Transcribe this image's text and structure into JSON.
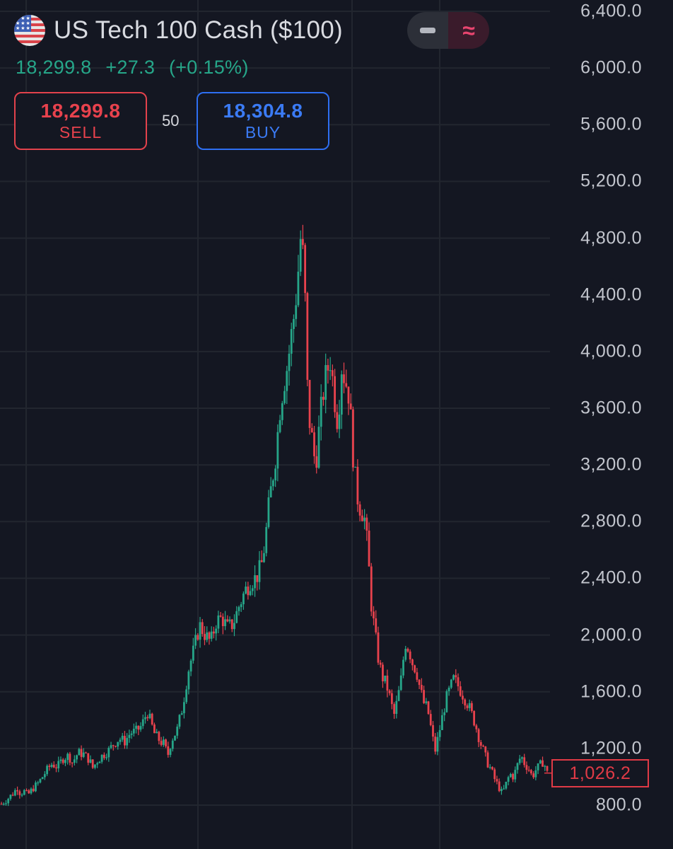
{
  "instrument": {
    "title": "US Tech 100 Cash ($100)",
    "flag_icon": "us-flag-icon",
    "price": "18,299.8",
    "change": "+27.3",
    "change_pct": "(+0.15%)"
  },
  "mode_toggle": {
    "left_icon": "minus-icon",
    "right_icon": "approx-icon",
    "right_symbol": "≈"
  },
  "trade": {
    "sell_price": "18,299.8",
    "sell_label": "SELL",
    "spread": "50",
    "buy_price": "18,304.8",
    "buy_label": "BUY"
  },
  "colors": {
    "up": "#26a689",
    "down": "#e8424d",
    "sell": "#e2424c",
    "buy": "#2e6ff2",
    "background": "#141722"
  },
  "chart_data": {
    "type": "candlestick",
    "ylim": [
      800,
      6400
    ],
    "y_ticks": [
      "6,400.0",
      "6,000.0",
      "5,600.0",
      "5,200.0",
      "4,800.0",
      "4,400.0",
      "4,000.0",
      "3,600.0",
      "3,200.0",
      "2,800.0",
      "2,400.0",
      "2,000.0",
      "1,600.0",
      "1,200.0",
      "800.0"
    ],
    "last_price_label": "1,026.2",
    "grid": true,
    "series": [
      {
        "close_path": [
          [
            0,
            810
          ],
          [
            3,
            840
          ],
          [
            6,
            880
          ],
          [
            9,
            930
          ],
          [
            10,
            880
          ],
          [
            12,
            900
          ],
          [
            14,
            870
          ],
          [
            17,
            920
          ],
          [
            20,
            960
          ],
          [
            22,
            1000
          ],
          [
            25,
            1060
          ],
          [
            27,
            1090
          ],
          [
            30,
            1070
          ],
          [
            33,
            1130
          ],
          [
            36,
            1150
          ],
          [
            38,
            1100
          ],
          [
            41,
            1170
          ],
          [
            44,
            1160
          ],
          [
            47,
            1120
          ],
          [
            49,
            1060
          ],
          [
            51,
            1110
          ],
          [
            54,
            1150
          ],
          [
            57,
            1180
          ],
          [
            60,
            1230
          ],
          [
            63,
            1270
          ],
          [
            66,
            1250
          ],
          [
            69,
            1310
          ],
          [
            72,
            1320
          ],
          [
            75,
            1360
          ],
          [
            78,
            1460
          ],
          [
            80,
            1380
          ],
          [
            82,
            1300
          ],
          [
            85,
            1250
          ],
          [
            87,
            1230
          ],
          [
            89,
            1150
          ],
          [
            91,
            1260
          ],
          [
            94,
            1330
          ],
          [
            97,
            1500
          ],
          [
            100,
            1750
          ],
          [
            103,
            1900
          ],
          [
            106,
            2070
          ],
          [
            109,
            2000
          ],
          [
            112,
            1950
          ],
          [
            115,
            2100
          ],
          [
            118,
            2120
          ],
          [
            121,
            2050
          ],
          [
            124,
            2080
          ],
          [
            127,
            2200
          ],
          [
            130,
            2300
          ],
          [
            133,
            2380
          ],
          [
            136,
            2400
          ],
          [
            139,
            2480
          ],
          [
            141,
            2650
          ],
          [
            143,
            2900
          ],
          [
            145,
            3100
          ],
          [
            147,
            3300
          ],
          [
            149,
            3600
          ],
          [
            151,
            3780
          ],
          [
            153,
            3900
          ],
          [
            155,
            4100
          ],
          [
            157,
            4300
          ],
          [
            159,
            4600
          ],
          [
            160,
            4800
          ],
          [
            162,
            4600
          ],
          [
            164,
            3600
          ],
          [
            166,
            3400
          ],
          [
            168,
            3200
          ],
          [
            170,
            3450
          ],
          [
            172,
            3700
          ],
          [
            174,
            3850
          ],
          [
            176,
            3950
          ],
          [
            178,
            3700
          ],
          [
            180,
            3500
          ],
          [
            182,
            3900
          ],
          [
            184,
            3800
          ],
          [
            186,
            3700
          ],
          [
            188,
            3300
          ],
          [
            190,
            3000
          ],
          [
            192,
            2900
          ],
          [
            194,
            2850
          ],
          [
            196,
            2600
          ],
          [
            198,
            2200
          ],
          [
            200,
            2000
          ],
          [
            202,
            1800
          ],
          [
            204,
            1700
          ],
          [
            206,
            1650
          ],
          [
            208,
            1550
          ],
          [
            210,
            1430
          ],
          [
            212,
            1550
          ],
          [
            214,
            1700
          ],
          [
            216,
            1950
          ],
          [
            218,
            1900
          ],
          [
            220,
            1800
          ],
          [
            222,
            1750
          ],
          [
            224,
            1620
          ],
          [
            226,
            1520
          ],
          [
            228,
            1480
          ],
          [
            230,
            1330
          ],
          [
            232,
            1180
          ],
          [
            234,
            1300
          ],
          [
            236,
            1430
          ],
          [
            238,
            1550
          ],
          [
            240,
            1620
          ],
          [
            242,
            1690
          ],
          [
            244,
            1650
          ],
          [
            246,
            1600
          ],
          [
            248,
            1550
          ],
          [
            250,
            1500
          ],
          [
            252,
            1430
          ],
          [
            254,
            1350
          ],
          [
            256,
            1250
          ],
          [
            258,
            1180
          ],
          [
            260,
            1100
          ],
          [
            262,
            1050
          ],
          [
            264,
            980
          ],
          [
            266,
            930
          ],
          [
            268,
            880
          ],
          [
            270,
            950
          ],
          [
            272,
            1020
          ],
          [
            274,
            1000
          ],
          [
            276,
            1080
          ],
          [
            278,
            1150
          ],
          [
            280,
            1090
          ],
          [
            282,
            1060
          ],
          [
            284,
            1000
          ],
          [
            286,
            1050
          ],
          [
            288,
            1080
          ],
          [
            290,
            1110
          ],
          [
            292,
            1026.2
          ]
        ]
      }
    ]
  }
}
